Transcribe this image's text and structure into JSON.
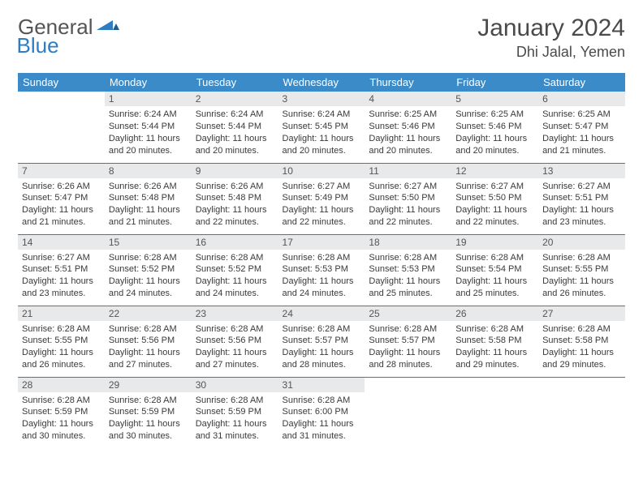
{
  "brand": {
    "part1": "General",
    "part2": "Blue"
  },
  "title": "January 2024",
  "location": "Dhi Jalal, Yemen",
  "colors": {
    "header_bg": "#3b8bc9",
    "header_text": "#ffffff",
    "daynum_bg": "#e8e9ea",
    "border": "#2e7cc1",
    "logo_blue": "#2e7cc1",
    "text": "#3a3a3a"
  },
  "weekdays": [
    "Sunday",
    "Monday",
    "Tuesday",
    "Wednesday",
    "Thursday",
    "Friday",
    "Saturday"
  ],
  "weeks": [
    [
      null,
      {
        "n": "1",
        "sr": "6:24 AM",
        "ss": "5:44 PM",
        "dh": "11",
        "dm": "20"
      },
      {
        "n": "2",
        "sr": "6:24 AM",
        "ss": "5:44 PM",
        "dh": "11",
        "dm": "20"
      },
      {
        "n": "3",
        "sr": "6:24 AM",
        "ss": "5:45 PM",
        "dh": "11",
        "dm": "20"
      },
      {
        "n": "4",
        "sr": "6:25 AM",
        "ss": "5:46 PM",
        "dh": "11",
        "dm": "20"
      },
      {
        "n": "5",
        "sr": "6:25 AM",
        "ss": "5:46 PM",
        "dh": "11",
        "dm": "20"
      },
      {
        "n": "6",
        "sr": "6:25 AM",
        "ss": "5:47 PM",
        "dh": "11",
        "dm": "21"
      }
    ],
    [
      {
        "n": "7",
        "sr": "6:26 AM",
        "ss": "5:47 PM",
        "dh": "11",
        "dm": "21"
      },
      {
        "n": "8",
        "sr": "6:26 AM",
        "ss": "5:48 PM",
        "dh": "11",
        "dm": "21"
      },
      {
        "n": "9",
        "sr": "6:26 AM",
        "ss": "5:48 PM",
        "dh": "11",
        "dm": "22"
      },
      {
        "n": "10",
        "sr": "6:27 AM",
        "ss": "5:49 PM",
        "dh": "11",
        "dm": "22"
      },
      {
        "n": "11",
        "sr": "6:27 AM",
        "ss": "5:50 PM",
        "dh": "11",
        "dm": "22"
      },
      {
        "n": "12",
        "sr": "6:27 AM",
        "ss": "5:50 PM",
        "dh": "11",
        "dm": "22"
      },
      {
        "n": "13",
        "sr": "6:27 AM",
        "ss": "5:51 PM",
        "dh": "11",
        "dm": "23"
      }
    ],
    [
      {
        "n": "14",
        "sr": "6:27 AM",
        "ss": "5:51 PM",
        "dh": "11",
        "dm": "23"
      },
      {
        "n": "15",
        "sr": "6:28 AM",
        "ss": "5:52 PM",
        "dh": "11",
        "dm": "24"
      },
      {
        "n": "16",
        "sr": "6:28 AM",
        "ss": "5:52 PM",
        "dh": "11",
        "dm": "24"
      },
      {
        "n": "17",
        "sr": "6:28 AM",
        "ss": "5:53 PM",
        "dh": "11",
        "dm": "24"
      },
      {
        "n": "18",
        "sr": "6:28 AM",
        "ss": "5:53 PM",
        "dh": "11",
        "dm": "25"
      },
      {
        "n": "19",
        "sr": "6:28 AM",
        "ss": "5:54 PM",
        "dh": "11",
        "dm": "25"
      },
      {
        "n": "20",
        "sr": "6:28 AM",
        "ss": "5:55 PM",
        "dh": "11",
        "dm": "26"
      }
    ],
    [
      {
        "n": "21",
        "sr": "6:28 AM",
        "ss": "5:55 PM",
        "dh": "11",
        "dm": "26"
      },
      {
        "n": "22",
        "sr": "6:28 AM",
        "ss": "5:56 PM",
        "dh": "11",
        "dm": "27"
      },
      {
        "n": "23",
        "sr": "6:28 AM",
        "ss": "5:56 PM",
        "dh": "11",
        "dm": "27"
      },
      {
        "n": "24",
        "sr": "6:28 AM",
        "ss": "5:57 PM",
        "dh": "11",
        "dm": "28"
      },
      {
        "n": "25",
        "sr": "6:28 AM",
        "ss": "5:57 PM",
        "dh": "11",
        "dm": "28"
      },
      {
        "n": "26",
        "sr": "6:28 AM",
        "ss": "5:58 PM",
        "dh": "11",
        "dm": "29"
      },
      {
        "n": "27",
        "sr": "6:28 AM",
        "ss": "5:58 PM",
        "dh": "11",
        "dm": "29"
      }
    ],
    [
      {
        "n": "28",
        "sr": "6:28 AM",
        "ss": "5:59 PM",
        "dh": "11",
        "dm": "30"
      },
      {
        "n": "29",
        "sr": "6:28 AM",
        "ss": "5:59 PM",
        "dh": "11",
        "dm": "30"
      },
      {
        "n": "30",
        "sr": "6:28 AM",
        "ss": "5:59 PM",
        "dh": "11",
        "dm": "31"
      },
      {
        "n": "31",
        "sr": "6:28 AM",
        "ss": "6:00 PM",
        "dh": "11",
        "dm": "31"
      },
      null,
      null,
      null
    ]
  ],
  "labels": {
    "sunrise": "Sunrise:",
    "sunset": "Sunset:",
    "daylight": "Daylight:",
    "hours": "hours",
    "and": "and",
    "minutes": "minutes."
  }
}
